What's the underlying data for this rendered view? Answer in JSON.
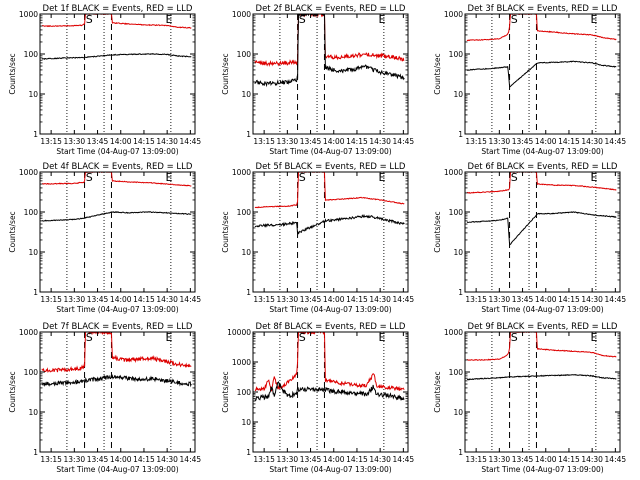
{
  "colors": {
    "events": "#000000",
    "lld": "#dd0000",
    "axes": "#000000",
    "background": "#ffffff"
  },
  "markers": {
    "start_label": "S",
    "end_label": "E"
  },
  "chart_data": [
    {
      "type": "line",
      "title": "Det 1f BLACK = Events, RED = LLD",
      "xlabel": "Start Time (04-Aug-07 13:09:00)",
      "ylabel": "Counts/sec",
      "xlim": [
        13.13,
        14.8
      ],
      "ylim": [
        1,
        1000
      ],
      "yscale": "log",
      "xtick_values": [
        13.25,
        13.5,
        13.75,
        14.0,
        14.25,
        14.5,
        14.75
      ],
      "xtick_labels": [
        "13:15",
        "13:30",
        "13:45",
        "14:00",
        "14:15",
        "14:30",
        "14:45"
      ],
      "ytick_values": [
        1,
        10,
        100,
        1000
      ],
      "ytick_labels": [
        "1",
        "10",
        "100",
        "1000"
      ],
      "dotted_lines": [
        13.42,
        13.82,
        14.54
      ],
      "dashed_lines": [
        13.61,
        13.9
      ],
      "s_marker": 13.66,
      "e_marker": 14.52,
      "series": [
        {
          "name": "LLD",
          "color": "red",
          "noise": 0.01,
          "x": [
            13.15,
            13.3,
            13.45,
            13.58,
            13.61,
            13.62,
            13.9,
            13.91,
            14.1,
            14.3,
            14.5,
            14.6,
            14.76
          ],
          "y": [
            500,
            500,
            510,
            520,
            560,
            1000,
            1000,
            600,
            560,
            530,
            520,
            470,
            450
          ]
        },
        {
          "name": "Events",
          "color": "black",
          "noise": 0.01,
          "x": [
            13.15,
            13.3,
            13.45,
            13.6,
            13.91,
            14.1,
            14.3,
            14.5,
            14.6,
            14.76
          ],
          "y": [
            75,
            78,
            80,
            82,
            95,
            98,
            100,
            98,
            90,
            85
          ]
        }
      ]
    },
    {
      "type": "line",
      "title": "Det 2f BLACK = Events, RED = LLD",
      "xlabel": "Start Time (04-Aug-07 13:09:00)",
      "ylabel": "Counts/sec",
      "xlim": [
        13.13,
        14.8
      ],
      "ylim": [
        1,
        1000
      ],
      "yscale": "log",
      "xtick_values": [
        13.25,
        13.5,
        13.75,
        14.0,
        14.25,
        14.5,
        14.75
      ],
      "xtick_labels": [
        "13:15",
        "13:30",
        "13:45",
        "14:00",
        "14:15",
        "14:30",
        "14:45"
      ],
      "ytick_values": [
        1,
        10,
        100,
        1000
      ],
      "ytick_labels": [
        "1",
        "10",
        "100",
        "1000"
      ],
      "dotted_lines": [
        13.42,
        13.82,
        14.54
      ],
      "dashed_lines": [
        13.61,
        13.9
      ],
      "s_marker": 13.66,
      "e_marker": 14.52,
      "series": [
        {
          "name": "LLD",
          "color": "red",
          "noise": 0.05,
          "x": [
            13.15,
            13.3,
            13.5,
            13.6,
            13.61,
            13.62,
            13.9,
            13.91,
            14.0,
            14.2,
            14.35,
            14.5,
            14.65,
            14.76
          ],
          "y": [
            60,
            58,
            60,
            62,
            70,
            1000,
            1000,
            90,
            80,
            90,
            100,
            90,
            85,
            70
          ]
        },
        {
          "name": "Events",
          "color": "black",
          "noise": 0.05,
          "x": [
            13.15,
            13.3,
            13.5,
            13.6,
            13.61,
            13.62,
            13.9,
            13.91,
            14.05,
            14.2,
            14.35,
            14.5,
            14.65,
            14.76
          ],
          "y": [
            20,
            18,
            20,
            22,
            25,
            1000,
            1000,
            45,
            38,
            40,
            48,
            35,
            30,
            25
          ]
        }
      ]
    },
    {
      "type": "line",
      "title": "Det 3f BLACK = Events, RED = LLD",
      "xlabel": "Start Time (04-Aug-07 13:09:00)",
      "ylabel": "Counts/sec",
      "xlim": [
        13.13,
        14.8
      ],
      "ylim": [
        1,
        1000
      ],
      "yscale": "log",
      "xtick_values": [
        13.25,
        13.5,
        13.75,
        14.0,
        14.25,
        14.5,
        14.75
      ],
      "xtick_labels": [
        "13:15",
        "13:30",
        "13:45",
        "14:00",
        "14:15",
        "14:30",
        "14:45"
      ],
      "ytick_values": [
        1,
        10,
        100,
        1000
      ],
      "ytick_labels": [
        "1",
        "10",
        "100",
        "1000"
      ],
      "dotted_lines": [
        13.42,
        13.82,
        14.54
      ],
      "dashed_lines": [
        13.61,
        13.9
      ],
      "s_marker": 13.66,
      "e_marker": 14.52,
      "series": [
        {
          "name": "LLD",
          "color": "red",
          "noise": 0.01,
          "x": [
            13.15,
            13.3,
            13.5,
            13.58,
            13.6,
            13.61,
            13.62,
            13.9,
            13.91,
            14.1,
            14.3,
            14.5,
            14.6,
            14.76
          ],
          "y": [
            220,
            225,
            240,
            300,
            350,
            500,
            1000,
            1000,
            380,
            350,
            320,
            300,
            260,
            230
          ]
        },
        {
          "name": "Events",
          "color": "black",
          "noise": 0.01,
          "x": [
            13.15,
            13.3,
            13.5,
            13.59,
            13.6,
            13.61,
            13.91,
            14.1,
            14.3,
            14.5,
            14.6,
            14.76
          ],
          "y": [
            40,
            42,
            45,
            48,
            30,
            15,
            60,
            62,
            65,
            60,
            52,
            48
          ]
        }
      ]
    },
    {
      "type": "line",
      "title": "Det 4f BLACK = Events, RED = LLD",
      "xlabel": "Start Time (04-Aug-07 13:09:00)",
      "ylabel": "Counts/sec",
      "xlim": [
        13.13,
        14.8
      ],
      "ylim": [
        1,
        1000
      ],
      "yscale": "log",
      "xtick_values": [
        13.25,
        13.5,
        13.75,
        14.0,
        14.25,
        14.5,
        14.75
      ],
      "xtick_labels": [
        "13:15",
        "13:30",
        "13:45",
        "14:00",
        "14:15",
        "14:30",
        "14:45"
      ],
      "ytick_values": [
        1,
        10,
        100,
        1000
      ],
      "ytick_labels": [
        "1",
        "10",
        "100",
        "1000"
      ],
      "dotted_lines": [
        13.42,
        13.82,
        14.54
      ],
      "dashed_lines": [
        13.61,
        13.9
      ],
      "s_marker": 13.66,
      "e_marker": 14.52,
      "series": [
        {
          "name": "LLD",
          "color": "red",
          "noise": 0.01,
          "x": [
            13.15,
            13.3,
            13.5,
            13.6,
            13.61,
            13.62,
            13.9,
            13.91,
            14.1,
            14.3,
            14.5,
            14.76
          ],
          "y": [
            500,
            510,
            520,
            550,
            600,
            1000,
            1000,
            600,
            560,
            540,
            500,
            450
          ]
        },
        {
          "name": "Events",
          "color": "black",
          "noise": 0.01,
          "x": [
            13.15,
            13.3,
            13.5,
            13.6,
            13.91,
            14.1,
            14.3,
            14.5,
            14.76
          ],
          "y": [
            60,
            62,
            65,
            70,
            100,
            95,
            100,
            95,
            88
          ]
        }
      ]
    },
    {
      "type": "line",
      "title": "Det 5f BLACK = Events, RED = LLD",
      "xlabel": "Start Time (04-Aug-07 13:09:00)",
      "ylabel": "Counts/sec",
      "xlim": [
        13.13,
        14.8
      ],
      "ylim": [
        1,
        1000
      ],
      "yscale": "log",
      "xtick_values": [
        13.25,
        13.5,
        13.75,
        14.0,
        14.25,
        14.5,
        14.75
      ],
      "xtick_labels": [
        "13:15",
        "13:30",
        "13:45",
        "14:00",
        "14:15",
        "14:30",
        "14:45"
      ],
      "ytick_values": [
        1,
        10,
        100,
        1000
      ],
      "ytick_labels": [
        "1",
        "10",
        "100",
        "1000"
      ],
      "dotted_lines": [
        13.42,
        13.82,
        14.54
      ],
      "dashed_lines": [
        13.61,
        13.9
      ],
      "s_marker": 13.66,
      "e_marker": 14.52,
      "series": [
        {
          "name": "LLD",
          "color": "red",
          "noise": 0.01,
          "x": [
            13.15,
            13.3,
            13.5,
            13.6,
            13.61,
            13.62,
            13.9,
            13.91,
            14.1,
            14.3,
            14.5,
            14.76
          ],
          "y": [
            130,
            135,
            140,
            150,
            180,
            1000,
            1000,
            200,
            210,
            230,
            200,
            160
          ]
        },
        {
          "name": "Events",
          "color": "black",
          "noise": 0.03,
          "x": [
            13.15,
            13.3,
            13.5,
            13.6,
            13.61,
            13.91,
            14.05,
            14.2,
            14.35,
            14.5,
            14.76
          ],
          "y": [
            45,
            47,
            50,
            55,
            30,
            60,
            65,
            72,
            80,
            68,
            50
          ]
        }
      ]
    },
    {
      "type": "line",
      "title": "Det 6f BLACK = Events, RED = LLD",
      "xlabel": "Start Time (04-Aug-07 13:09:00)",
      "ylabel": "Counts/sec",
      "xlim": [
        13.13,
        14.8
      ],
      "ylim": [
        1,
        1000
      ],
      "yscale": "log",
      "xtick_values": [
        13.25,
        13.5,
        13.75,
        14.0,
        14.25,
        14.5,
        14.75
      ],
      "xtick_labels": [
        "13:15",
        "13:30",
        "13:45",
        "14:00",
        "14:15",
        "14:30",
        "14:45"
      ],
      "ytick_values": [
        1,
        10,
        100,
        1000
      ],
      "ytick_labels": [
        "1",
        "10",
        "100",
        "1000"
      ],
      "dotted_lines": [
        13.42,
        13.82,
        14.54
      ],
      "dashed_lines": [
        13.61,
        13.9
      ],
      "s_marker": 13.66,
      "e_marker": 14.52,
      "series": [
        {
          "name": "LLD",
          "color": "red",
          "noise": 0.01,
          "x": [
            13.15,
            13.3,
            13.5,
            13.6,
            13.61,
            13.62,
            13.9,
            13.91,
            14.1,
            14.3,
            14.5,
            14.76
          ],
          "y": [
            300,
            310,
            330,
            360,
            400,
            1000,
            1000,
            500,
            470,
            460,
            420,
            360
          ]
        },
        {
          "name": "Events",
          "color": "black",
          "noise": 0.01,
          "x": [
            13.15,
            13.3,
            13.5,
            13.59,
            13.6,
            13.61,
            13.91,
            14.1,
            14.3,
            14.5,
            14.76
          ],
          "y": [
            55,
            58,
            62,
            70,
            35,
            15,
            90,
            92,
            100,
            85,
            75
          ]
        }
      ]
    },
    {
      "type": "line",
      "title": "Det 7f BLACK = Events, RED = LLD",
      "xlabel": "Start Time (04-Aug-07 13:09:00)",
      "ylabel": "Counts/sec",
      "xlim": [
        13.13,
        14.8
      ],
      "ylim": [
        1,
        1000
      ],
      "yscale": "log",
      "xtick_values": [
        13.25,
        13.5,
        13.75,
        14.0,
        14.25,
        14.5,
        14.75
      ],
      "xtick_labels": [
        "13:15",
        "13:30",
        "13:45",
        "14:00",
        "14:15",
        "14:30",
        "14:45"
      ],
      "ytick_values": [
        1,
        10,
        100,
        1000
      ],
      "ytick_labels": [
        "1",
        "10",
        "100",
        "1000"
      ],
      "dotted_lines": [
        13.42,
        13.82,
        14.54
      ],
      "dashed_lines": [
        13.61,
        13.9
      ],
      "s_marker": 13.66,
      "e_marker": 14.52,
      "series": [
        {
          "name": "LLD",
          "color": "red",
          "noise": 0.05,
          "x": [
            13.15,
            13.3,
            13.5,
            13.6,
            13.61,
            13.62,
            13.9,
            13.91,
            14.05,
            14.2,
            14.35,
            14.5,
            14.65,
            14.76
          ],
          "y": [
            110,
            110,
            120,
            130,
            150,
            1000,
            1000,
            230,
            200,
            210,
            220,
            180,
            150,
            140
          ]
        },
        {
          "name": "Events",
          "color": "black",
          "noise": 0.05,
          "x": [
            13.15,
            13.3,
            13.5,
            13.6,
            13.91,
            14.05,
            14.2,
            14.35,
            14.5,
            14.65,
            14.76
          ],
          "y": [
            50,
            52,
            55,
            60,
            75,
            70,
            65,
            68,
            60,
            52,
            50
          ]
        }
      ]
    },
    {
      "type": "line",
      "title": "Det 8f BLACK = Events, RED = LLD",
      "xlabel": "Start Time (04-Aug-07 13:09:00)",
      "ylabel": "Counts/sec",
      "xlim": [
        13.13,
        14.8
      ],
      "ylim": [
        1,
        10000
      ],
      "yscale": "log",
      "xtick_values": [
        13.25,
        13.5,
        13.75,
        14.0,
        14.25,
        14.5,
        14.75
      ],
      "xtick_labels": [
        "13:15",
        "13:30",
        "13:45",
        "14:00",
        "14:15",
        "14:30",
        "14:45"
      ],
      "ytick_values": [
        1,
        10,
        100,
        1000,
        10000
      ],
      "ytick_labels": [
        "1",
        "10",
        "100",
        "1000",
        "10000"
      ],
      "dotted_lines": [
        13.42,
        13.82,
        14.54
      ],
      "dashed_lines": [
        13.61,
        13.9
      ],
      "s_marker": 13.66,
      "e_marker": 14.52,
      "series": [
        {
          "name": "LLD",
          "color": "red",
          "noise": 0.06,
          "x": [
            13.15,
            13.25,
            13.3,
            13.33,
            13.36,
            13.4,
            13.45,
            13.5,
            13.6,
            13.61,
            13.62,
            13.9,
            13.91,
            14.05,
            14.2,
            14.35,
            14.43,
            14.46,
            14.5,
            14.6,
            14.76
          ],
          "y": [
            120,
            130,
            250,
            120,
            300,
            130,
            160,
            200,
            400,
            1000,
            10000,
            10000,
            250,
            200,
            180,
            160,
            400,
            160,
            150,
            140,
            120
          ]
        },
        {
          "name": "Events",
          "color": "black",
          "noise": 0.08,
          "x": [
            13.15,
            13.3,
            13.33,
            13.36,
            13.4,
            13.5,
            13.6,
            13.61,
            13.91,
            14.05,
            14.2,
            14.35,
            14.43,
            14.46,
            14.5,
            14.6,
            14.76
          ],
          "y": [
            60,
            70,
            150,
            65,
            200,
            70,
            90,
            120,
            120,
            100,
            90,
            85,
            150,
            80,
            80,
            75,
            60
          ]
        }
      ]
    },
    {
      "type": "line",
      "title": "Det 9f BLACK = Events, RED = LLD",
      "xlabel": "Start Time (04-Aug-07 13:09:00)",
      "ylabel": "Counts/sec",
      "xlim": [
        13.13,
        14.8
      ],
      "ylim": [
        1,
        1000
      ],
      "yscale": "log",
      "xtick_values": [
        13.25,
        13.5,
        13.75,
        14.0,
        14.25,
        14.5,
        14.75
      ],
      "xtick_labels": [
        "13:15",
        "13:30",
        "13:45",
        "14:00",
        "14:15",
        "14:30",
        "14:45"
      ],
      "ytick_values": [
        1,
        10,
        100,
        1000
      ],
      "ytick_labels": [
        "1",
        "10",
        "100",
        "1000"
      ],
      "dotted_lines": [
        13.42,
        13.82,
        14.54
      ],
      "dashed_lines": [
        13.61,
        13.9
      ],
      "s_marker": 13.66,
      "e_marker": 14.52,
      "series": [
        {
          "name": "LLD",
          "color": "red",
          "noise": 0.01,
          "x": [
            13.15,
            13.3,
            13.5,
            13.58,
            13.6,
            13.61,
            13.62,
            13.9,
            13.91,
            14.1,
            14.3,
            14.5,
            14.6,
            14.76
          ],
          "y": [
            200,
            200,
            210,
            260,
            300,
            400,
            1000,
            1000,
            380,
            350,
            330,
            310,
            260,
            240
          ]
        },
        {
          "name": "Events",
          "color": "black",
          "noise": 0.01,
          "x": [
            13.15,
            13.3,
            13.5,
            13.6,
            13.91,
            14.1,
            14.3,
            14.5,
            14.6,
            14.76
          ],
          "y": [
            65,
            68,
            72,
            75,
            80,
            82,
            85,
            80,
            72,
            68
          ]
        }
      ]
    }
  ]
}
